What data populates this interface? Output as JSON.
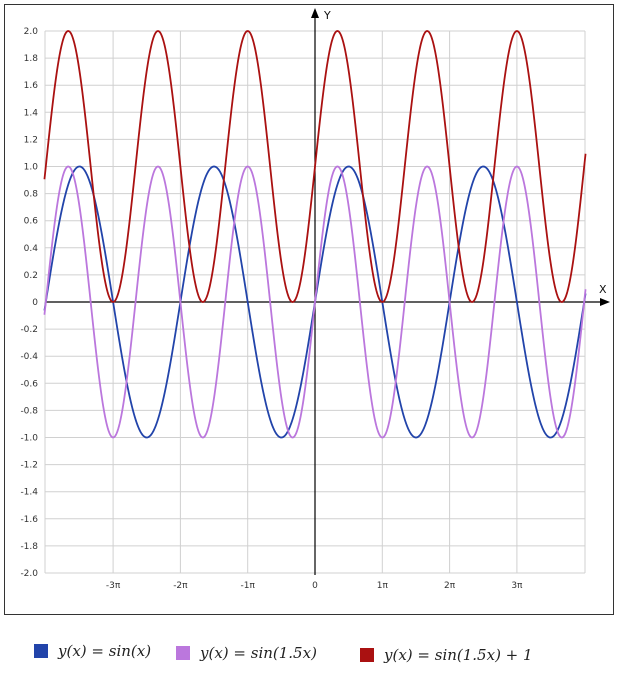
{
  "chart_data": {
    "type": "line",
    "title": "",
    "xlabel": "X",
    "ylabel": "Y",
    "xlim": [
      -4.02,
      4.02
    ],
    "x_unit": "pi",
    "ylim": [
      -2.0,
      2.0
    ],
    "grid": true,
    "x_ticks": [
      {
        "value": -3,
        "label": "-3π"
      },
      {
        "value": -2,
        "label": "-2π"
      },
      {
        "value": -1,
        "label": "-1π"
      },
      {
        "value": 0,
        "label": "0"
      },
      {
        "value": 1,
        "label": "1π"
      },
      {
        "value": 2,
        "label": "2π"
      },
      {
        "value": 3,
        "label": "3π"
      }
    ],
    "y_ticks": [
      "2.0",
      "1.8",
      "1.6",
      "1.4",
      "1.2",
      "1.0",
      "0.8",
      "0.6",
      "0.4",
      "0.2",
      "0",
      "-0.2",
      "-0.4",
      "-0.6",
      "-0.8",
      "-1.0",
      "-1.2",
      "-1.4",
      "-1.6",
      "-1.8",
      "-2.0"
    ],
    "series": [
      {
        "name": "y(x) = sin(x)",
        "formula": "sin(x)",
        "color": "#2244aa"
      },
      {
        "name": "y(x) = sin(1.5x)",
        "formula": "sin(1.5x)",
        "color": "#bb77dd"
      },
      {
        "name": "y(x) = sin(1.5x) + 1",
        "formula": "sin(1.5x) + 1",
        "color": "#aa1111"
      }
    ],
    "legend_position": "bottom"
  },
  "legend": {
    "items": [
      {
        "label": "y(x) = sin(x)",
        "color": "#2244aa"
      },
      {
        "label": "y(x) = sin(1.5x)",
        "color": "#bb77dd"
      },
      {
        "label": "y(x) = sin(1.5x) + 1",
        "color": "#aa1111"
      }
    ]
  }
}
